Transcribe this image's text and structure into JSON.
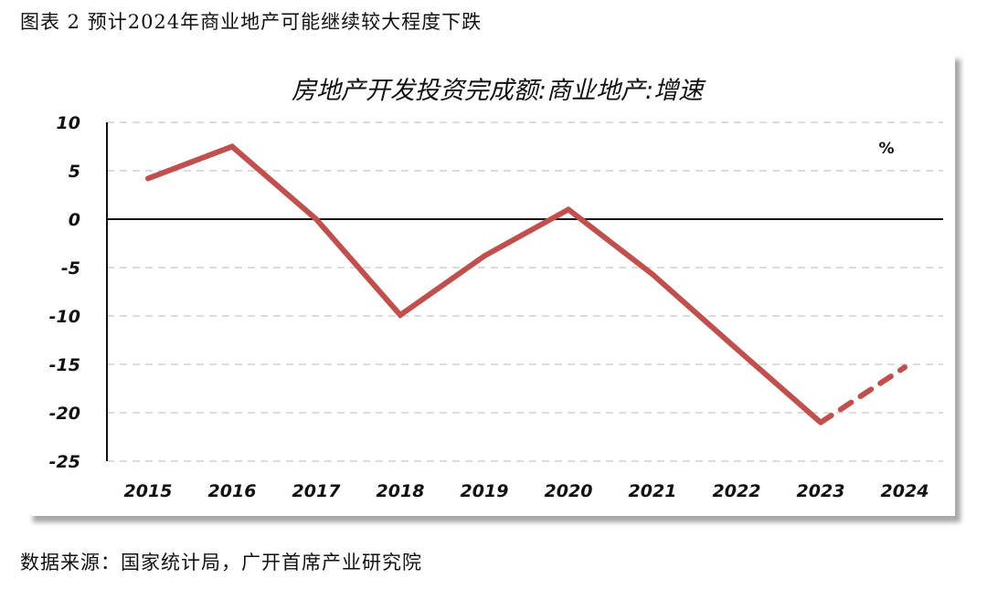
{
  "figure": {
    "caption": "图表 2 预计2024年商业地产可能继续较大程度下跌",
    "source": "数据来源：国家统计局，广开首席产业研究院"
  },
  "chart_data": {
    "type": "line",
    "title": "房地产开发投资完成额:商业地产:增速",
    "unit": "%",
    "xlabel": "",
    "ylabel": "",
    "categories": [
      "2015",
      "2016",
      "2017",
      "2018",
      "2019",
      "2020",
      "2021",
      "2022",
      "2023",
      "2024"
    ],
    "series": [
      {
        "name": "房地产开发投资完成额:商业地产:增速",
        "values": [
          4.2,
          7.5,
          0.0,
          -9.9,
          -3.8,
          1.0,
          -5.7,
          -13.4,
          -21.0,
          -15.3
        ],
        "color": "#c0504d",
        "solid_until_index": 8,
        "dashed_segment": [
          "2023",
          "2024"
        ],
        "note": "2024 value is a forecast (dashed)"
      }
    ],
    "yticks": [
      10,
      5,
      0,
      -5,
      -10,
      -15,
      -20,
      -25
    ],
    "ylim": [
      -25,
      10
    ],
    "grid": "horizontal dashed",
    "zero_line": true,
    "legend": "none"
  }
}
